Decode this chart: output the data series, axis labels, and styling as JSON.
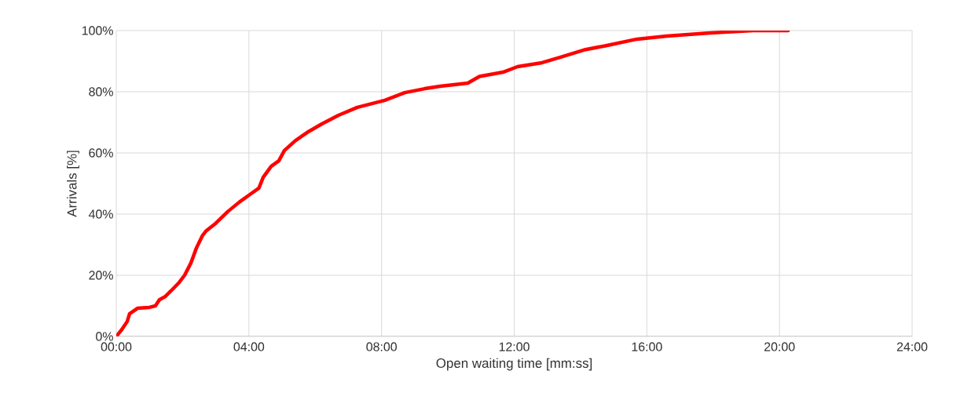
{
  "chart_data": {
    "type": "line",
    "xlabel": "Open waiting time [mm:ss]",
    "ylabel": "Arrivals [%]",
    "xlim": [
      0,
      24
    ],
    "ylim": [
      0,
      100
    ],
    "xticks": [
      {
        "value": 0,
        "label": "00:00"
      },
      {
        "value": 4,
        "label": "04:00"
      },
      {
        "value": 8,
        "label": "08:00"
      },
      {
        "value": 12,
        "label": "12:00"
      },
      {
        "value": 16,
        "label": "16:00"
      },
      {
        "value": 20,
        "label": "20:00"
      },
      {
        "value": 24,
        "label": "24:00"
      }
    ],
    "yticks": [
      {
        "value": 0,
        "label": "0%"
      },
      {
        "value": 20,
        "label": "20%"
      },
      {
        "value": 40,
        "label": "40%"
      },
      {
        "value": 60,
        "label": "60%"
      },
      {
        "value": 80,
        "label": "80%"
      },
      {
        "value": 100,
        "label": "100%"
      }
    ],
    "grid": true,
    "legend": false,
    "marker": "none",
    "line_style": "solid",
    "series": [
      {
        "color": "#ff0000",
        "x": [
          0,
          0.17,
          0.33,
          0.4,
          0.64,
          1.0,
          1.18,
          1.3,
          1.47,
          1.66,
          1.9,
          2.06,
          2.25,
          2.42,
          2.6,
          2.7,
          3.0,
          3.36,
          3.72,
          4.03,
          4.3,
          4.43,
          4.67,
          4.9,
          5.07,
          5.4,
          5.8,
          6.2,
          6.7,
          7.27,
          8.1,
          8.7,
          9.3,
          9.76,
          10.6,
          10.95,
          11.66,
          12.1,
          12.84,
          13.4,
          14.15,
          14.74,
          15.7,
          16.6,
          17.9,
          19.2,
          20.26
        ],
        "values": [
          0,
          2.3,
          4.9,
          7.4,
          9.2,
          9.5,
          10,
          12,
          13,
          15,
          17.7,
          20,
          24,
          29,
          33,
          34.4,
          37,
          40.8,
          44,
          46.4,
          48.5,
          52,
          55.6,
          57.4,
          60.8,
          64,
          67,
          69.5,
          72.3,
          74.9,
          77.2,
          79.7,
          81,
          81.8,
          82.8,
          85,
          86.4,
          88.2,
          89.5,
          91.3,
          93.8,
          95,
          97.2,
          98.2,
          99.2,
          100,
          100
        ]
      }
    ]
  }
}
